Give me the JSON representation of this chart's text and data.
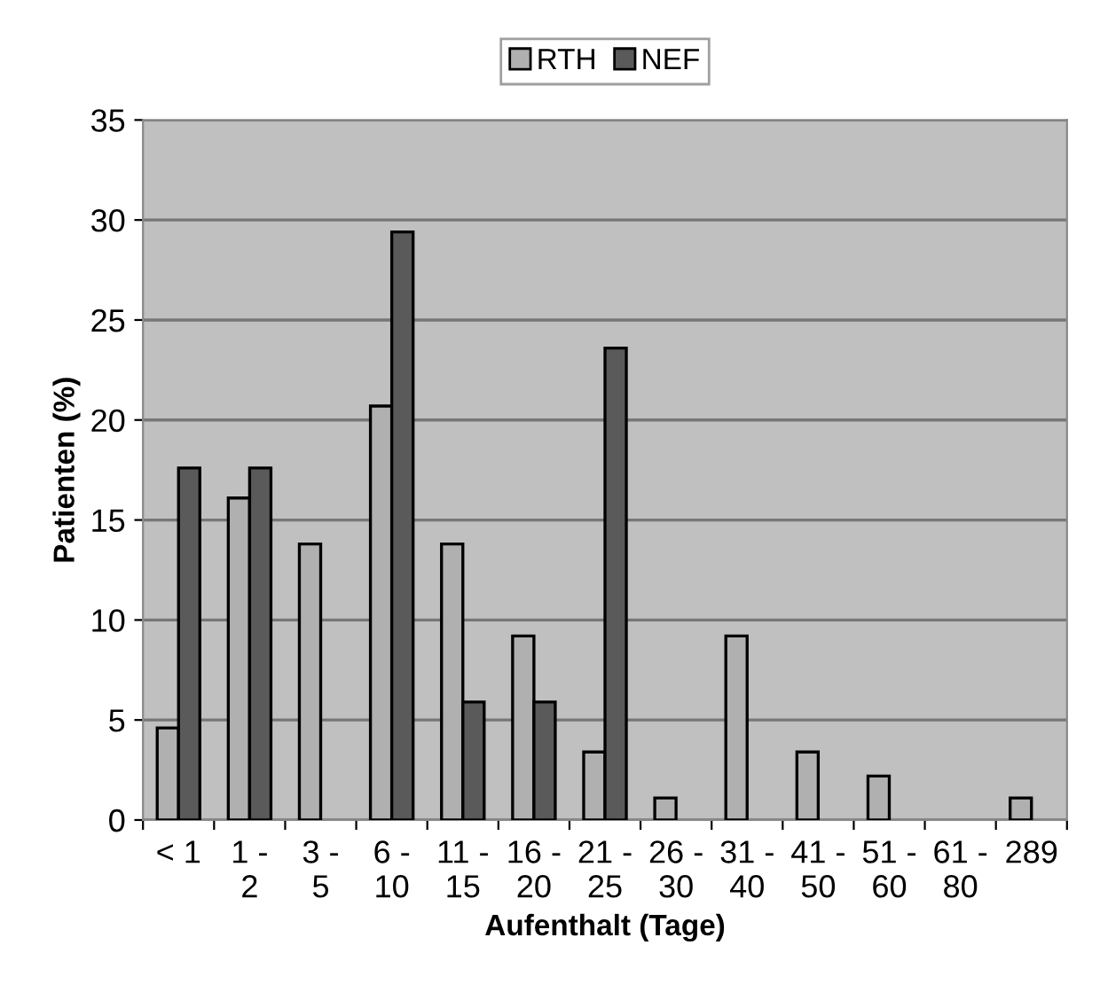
{
  "chart_data": {
    "type": "bar",
    "xlabel": "Aufenthalt (Tage)",
    "ylabel": "Patienten (%)",
    "categories": [
      "< 1",
      "1 -\n2",
      "3 -\n5",
      "6 -\n10",
      "11 -\n15",
      "16 -\n20",
      "21 -\n25",
      "26 -\n30",
      "31 -\n40",
      "41 -\n50",
      "51 -\n60",
      "61 -\n80",
      "289"
    ],
    "series": [
      {
        "name": "RTH",
        "color": "#b0b0b0",
        "values": [
          4.6,
          16.1,
          13.8,
          20.7,
          13.8,
          9.2,
          3.4,
          1.1,
          9.2,
          3.4,
          2.2,
          null,
          1.1
        ]
      },
      {
        "name": "NEF",
        "color": "#5a5a5a",
        "values": [
          17.6,
          17.6,
          null,
          29.4,
          5.9,
          5.9,
          23.6,
          null,
          null,
          null,
          null,
          null,
          null
        ]
      }
    ],
    "ylim": [
      0,
      35
    ],
    "yticks": [
      0,
      5,
      10,
      15,
      20,
      25,
      30,
      35
    ],
    "grid": "y",
    "legend": "top"
  }
}
